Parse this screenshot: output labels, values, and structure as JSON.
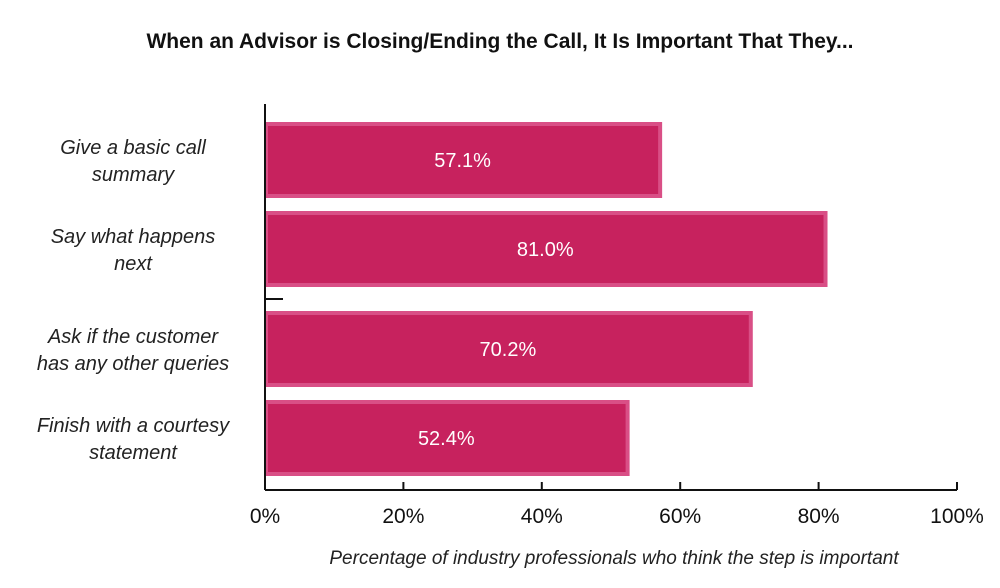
{
  "chart_data": {
    "type": "bar",
    "orientation": "horizontal",
    "title": "When an Advisor is Closing/Ending the Call, It Is Important That They...",
    "xlabel": "Percentage of industry professionals who think the step is important",
    "ylabel": "",
    "categories": [
      [
        "Give a basic call",
        "summary"
      ],
      [
        "Say what happens",
        "next"
      ],
      [
        "Ask if the customer",
        "has any other queries"
      ],
      [
        "Finish with a courtesy",
        "statement"
      ]
    ],
    "values": [
      57.1,
      81.0,
      70.2,
      52.4
    ],
    "data_labels": [
      "57.1%",
      "81.0%",
      "70.2%",
      "52.4%"
    ],
    "xlim": [
      0,
      100
    ],
    "xticks": [
      0,
      20,
      40,
      60,
      80,
      100
    ],
    "xtick_labels": [
      "0%",
      "20%",
      "40%",
      "60%",
      "80%",
      "100%"
    ],
    "grid": false,
    "colors": {
      "bar": "#c7225e",
      "bar_outline": "#d94f86",
      "axis": "#111111"
    }
  }
}
